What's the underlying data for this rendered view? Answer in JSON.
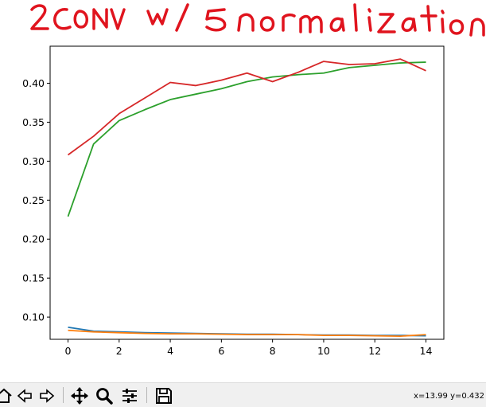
{
  "annotation": {
    "handwritten_title": "2CONV w/ 5 normalization"
  },
  "toolbar": {
    "buttons": [
      {
        "name": "home-button",
        "icon": "home-icon"
      },
      {
        "name": "back-button",
        "icon": "back-arrow-icon"
      },
      {
        "name": "forward-button",
        "icon": "forward-arrow-icon"
      },
      {
        "name": "pan-button",
        "icon": "move-icon"
      },
      {
        "name": "zoom-button",
        "icon": "magnifier-icon"
      },
      {
        "name": "configure-subplots-button",
        "icon": "sliders-icon"
      },
      {
        "name": "save-button",
        "icon": "floppy-disk-icon"
      }
    ],
    "coordinates": "x=13.99 y=0.432"
  },
  "colors": {
    "annotation": "#e0141e",
    "toolbar_bg": "#f0f0f0"
  },
  "chart_data": {
    "type": "line",
    "title": "",
    "xlabel": "",
    "ylabel": "",
    "xlim": [
      -0.7,
      14.7
    ],
    "ylim": [
      0.0715,
      0.4475
    ],
    "xticks": [
      0,
      2,
      4,
      6,
      8,
      10,
      12,
      14
    ],
    "yticks": [
      0.1,
      0.15,
      0.2,
      0.25,
      0.3,
      0.35,
      0.4
    ],
    "xtick_labels": [
      "0",
      "2",
      "4",
      "6",
      "8",
      "10",
      "12",
      "14"
    ],
    "ytick_labels": [
      "0.10",
      "0.15",
      "0.20",
      "0.25",
      "0.30",
      "0.35",
      "0.40"
    ],
    "grid": false,
    "x": [
      0,
      1,
      2,
      3,
      4,
      5,
      6,
      7,
      8,
      9,
      10,
      11,
      12,
      13,
      14
    ],
    "series": [
      {
        "color": "#1f77b4",
        "values": [
          0.087,
          0.082,
          0.081,
          0.08,
          0.0795,
          0.079,
          0.0785,
          0.078,
          0.078,
          0.0775,
          0.077,
          0.077,
          0.0765,
          0.0765,
          0.076
        ]
      },
      {
        "color": "#ff7f0e",
        "values": [
          0.083,
          0.081,
          0.08,
          0.079,
          0.0785,
          0.0785,
          0.078,
          0.0775,
          0.0775,
          0.0775,
          0.0765,
          0.0765,
          0.076,
          0.0755,
          0.0775
        ]
      },
      {
        "color": "#2ca02c",
        "values": [
          0.229,
          0.322,
          0.352,
          0.366,
          0.379,
          0.386,
          0.393,
          0.402,
          0.408,
          0.411,
          0.413,
          0.42,
          0.423,
          0.426,
          0.427
        ]
      },
      {
        "color": "#d62728",
        "values": [
          0.308,
          0.332,
          0.361,
          0.381,
          0.401,
          0.397,
          0.404,
          0.413,
          0.402,
          0.414,
          0.428,
          0.424,
          0.425,
          0.431,
          0.416
        ]
      }
    ]
  }
}
